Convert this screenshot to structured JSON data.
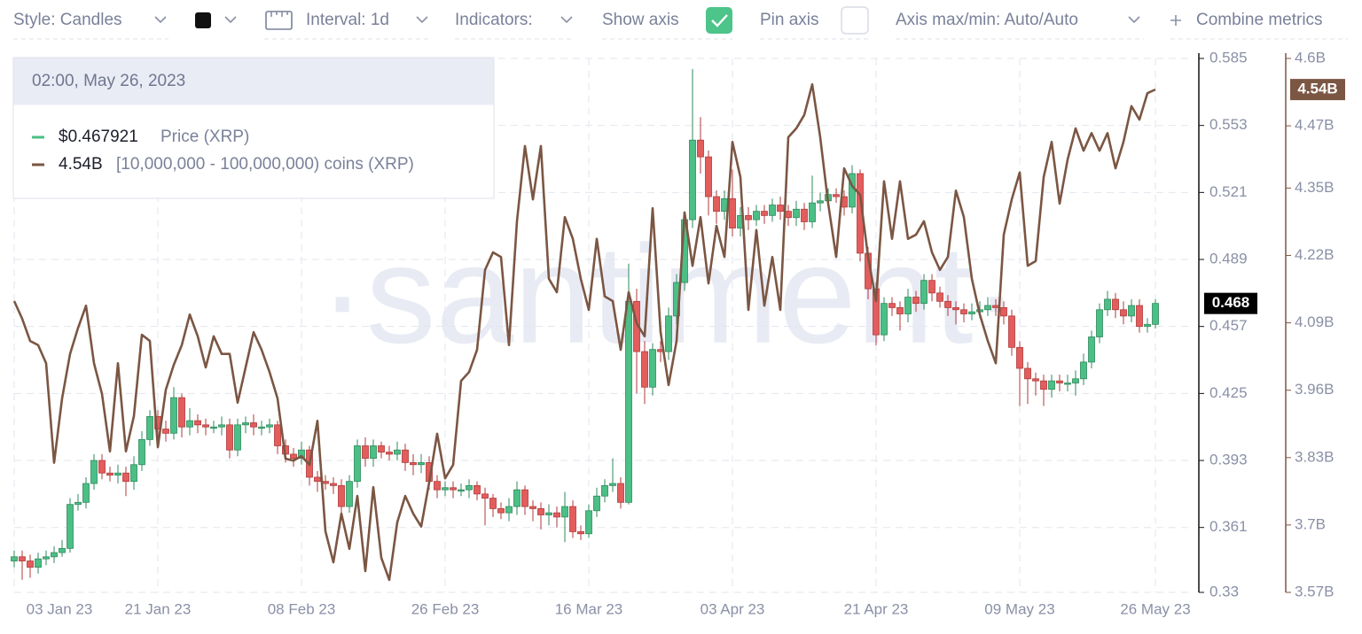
{
  "toolbar": {
    "style": "Style: Candles",
    "interval": "Interval: 1d",
    "indicators": "Indicators:",
    "show_axis": "Show axis",
    "pin_axis": "Pin axis",
    "axis_range": "Axis max/min: Auto/Auto",
    "combine": "Combine metrics"
  },
  "watermark": "·santiment·",
  "tooltip": {
    "date": "02:00, May 26, 2023",
    "price": "$0.467921",
    "holders": "4.54B"
  },
  "chart_data": {
    "type": "candlestick",
    "categories": [
      "03 Jan 23",
      null,
      null,
      null,
      null,
      null,
      null,
      null,
      null,
      null,
      null,
      null,
      null,
      null,
      null,
      null,
      null,
      null,
      "21 Jan 23",
      null,
      null,
      null,
      null,
      null,
      null,
      null,
      null,
      null,
      null,
      null,
      null,
      null,
      null,
      null,
      null,
      null,
      "08 Feb 23",
      null,
      null,
      null,
      null,
      null,
      null,
      null,
      null,
      null,
      null,
      null,
      null,
      null,
      null,
      null,
      null,
      null,
      "26 Feb 23",
      null,
      null,
      null,
      null,
      null,
      null,
      null,
      null,
      null,
      null,
      null,
      null,
      null,
      null,
      null,
      null,
      null,
      "16 Mar 23",
      null,
      null,
      null,
      null,
      null,
      null,
      null,
      null,
      null,
      null,
      null,
      null,
      null,
      null,
      null,
      null,
      null,
      "03 Apr 23",
      null,
      null,
      null,
      null,
      null,
      null,
      null,
      null,
      null,
      null,
      null,
      null,
      null,
      null,
      null,
      null,
      null,
      "21 Apr 23",
      null,
      null,
      null,
      null,
      null,
      null,
      null,
      null,
      null,
      null,
      null,
      null,
      null,
      null,
      null,
      null,
      null,
      "09 May 23",
      null,
      null,
      null,
      null,
      null,
      null,
      null,
      null,
      null,
      null,
      null,
      null,
      null,
      null,
      null,
      null,
      "26 May 23"
    ],
    "series": [
      {
        "name": "Price (XRP)",
        "type": "candlestick",
        "up_color": "#4cbf86",
        "down_color": "#e35d5d",
        "color": "#4cbf86",
        "open": [
          0.345,
          0.347,
          0.345,
          0.342,
          0.346,
          0.347,
          0.349,
          0.351,
          0.372,
          0.373,
          0.382,
          0.393,
          0.387,
          0.386,
          0.387,
          0.383,
          0.391,
          0.403,
          0.414,
          0.408,
          0.406,
          0.423,
          0.409,
          0.412,
          0.41,
          0.409,
          0.409,
          0.41,
          0.398,
          0.41,
          0.411,
          0.409,
          0.409,
          0.41,
          0.4,
          0.396,
          0.394,
          0.398,
          0.385,
          0.383,
          0.382,
          0.381,
          0.371,
          0.383,
          0.4,
          0.394,
          0.4,
          0.397,
          0.396,
          0.398,
          0.392,
          0.391,
          0.392,
          0.383,
          0.379,
          0.38,
          0.379,
          0.379,
          0.381,
          0.377,
          0.375,
          0.37,
          0.368,
          0.371,
          0.379,
          0.371,
          0.37,
          0.367,
          0.368,
          0.366,
          0.371,
          0.359,
          0.358,
          0.369,
          0.376,
          0.381,
          0.382,
          0.373,
          0.469,
          0.445,
          0.428,
          0.446,
          0.445,
          0.462,
          0.478,
          0.508,
          0.546,
          0.538,
          0.519,
          0.512,
          0.518,
          0.504,
          0.51,
          0.508,
          0.512,
          0.51,
          0.515,
          0.512,
          0.509,
          0.513,
          0.507,
          0.516,
          0.517,
          0.52,
          0.519,
          0.514,
          0.53,
          0.492,
          0.475,
          0.453,
          0.468,
          0.466,
          0.463,
          0.471,
          0.468,
          0.479,
          0.473,
          0.469,
          0.466,
          0.465,
          0.463,
          0.464,
          0.465,
          0.467,
          0.466,
          0.462,
          0.447,
          0.437,
          0.432,
          0.431,
          0.427,
          0.431,
          0.43,
          0.43,
          0.432,
          0.44,
          0.452,
          0.465,
          0.47,
          0.465,
          0.462,
          0.467,
          0.457,
          0.458
        ],
        "high": [
          0.35,
          0.35,
          0.348,
          0.349,
          0.35,
          0.352,
          0.355,
          0.375,
          0.377,
          0.385,
          0.396,
          0.396,
          0.39,
          0.391,
          0.39,
          0.395,
          0.407,
          0.417,
          0.417,
          0.412,
          0.428,
          0.425,
          0.418,
          0.415,
          0.413,
          0.412,
          0.414,
          0.413,
          0.413,
          0.414,
          0.415,
          0.412,
          0.413,
          0.412,
          0.403,
          0.399,
          0.402,
          0.4,
          0.388,
          0.386,
          0.385,
          0.384,
          0.386,
          0.403,
          0.404,
          0.403,
          0.402,
          0.4,
          0.402,
          0.401,
          0.396,
          0.396,
          0.395,
          0.386,
          0.383,
          0.383,
          0.382,
          0.384,
          0.383,
          0.38,
          0.377,
          0.373,
          0.375,
          0.383,
          0.381,
          0.374,
          0.373,
          0.372,
          0.371,
          0.378,
          0.374,
          0.362,
          0.372,
          0.38,
          0.384,
          0.394,
          0.385,
          0.487,
          0.475,
          0.45,
          0.449,
          0.45,
          0.466,
          0.482,
          0.511,
          0.58,
          0.557,
          0.541,
          0.522,
          0.522,
          0.532,
          0.514,
          0.514,
          0.515,
          0.515,
          0.518,
          0.519,
          0.515,
          0.517,
          0.516,
          0.529,
          0.521,
          0.523,
          0.523,
          0.522,
          0.534,
          0.532,
          0.495,
          0.478,
          0.471,
          0.471,
          0.469,
          0.475,
          0.474,
          0.482,
          0.482,
          0.476,
          0.472,
          0.469,
          0.468,
          0.468,
          0.469,
          0.471,
          0.47,
          0.469,
          0.465,
          0.45,
          0.44,
          0.435,
          0.434,
          0.434,
          0.434,
          0.434,
          0.436,
          0.444,
          0.455,
          0.468,
          0.474,
          0.473,
          0.469,
          0.47,
          0.47,
          0.461,
          0.47
        ],
        "low": [
          0.342,
          0.336,
          0.337,
          0.339,
          0.343,
          0.344,
          0.347,
          0.349,
          0.369,
          0.37,
          0.379,
          0.384,
          0.383,
          0.382,
          0.376,
          0.379,
          0.388,
          0.4,
          0.404,
          0.402,
          0.403,
          0.404,
          0.405,
          0.406,
          0.405,
          0.406,
          0.405,
          0.394,
          0.395,
          0.406,
          0.405,
          0.405,
          0.406,
          0.396,
          0.392,
          0.39,
          0.391,
          0.381,
          0.378,
          0.379,
          0.377,
          0.366,
          0.368,
          0.38,
          0.39,
          0.39,
          0.394,
          0.393,
          0.393,
          0.388,
          0.386,
          0.387,
          0.379,
          0.375,
          0.376,
          0.375,
          0.376,
          0.375,
          0.374,
          0.362,
          0.366,
          0.365,
          0.364,
          0.367,
          0.367,
          0.364,
          0.36,
          0.362,
          0.361,
          0.354,
          0.356,
          0.355,
          0.356,
          0.366,
          0.373,
          0.378,
          0.37,
          0.372,
          0.425,
          0.42,
          0.424,
          0.44,
          0.441,
          0.458,
          0.474,
          0.504,
          0.53,
          0.51,
          0.506,
          0.508,
          0.5,
          0.5,
          0.503,
          0.505,
          0.506,
          0.507,
          0.508,
          0.505,
          0.505,
          0.503,
          0.504,
          0.512,
          0.514,
          0.516,
          0.51,
          0.511,
          0.488,
          0.47,
          0.448,
          0.45,
          0.462,
          0.455,
          0.459,
          0.464,
          0.465,
          0.469,
          0.466,
          0.462,
          0.458,
          0.459,
          0.46,
          0.461,
          0.462,
          0.462,
          0.458,
          0.443,
          0.419,
          0.42,
          0.424,
          0.419,
          0.423,
          0.426,
          0.426,
          0.424,
          0.429,
          0.437,
          0.449,
          0.462,
          0.461,
          0.458,
          0.459,
          0.454,
          0.454,
          0.456
        ],
        "close": [
          0.347,
          0.345,
          0.342,
          0.346,
          0.347,
          0.349,
          0.351,
          0.372,
          0.373,
          0.382,
          0.393,
          0.387,
          0.386,
          0.387,
          0.383,
          0.391,
          0.403,
          0.414,
          0.408,
          0.406,
          0.423,
          0.409,
          0.412,
          0.41,
          0.409,
          0.409,
          0.41,
          0.398,
          0.41,
          0.411,
          0.409,
          0.409,
          0.41,
          0.4,
          0.396,
          0.394,
          0.398,
          0.385,
          0.383,
          0.382,
          0.381,
          0.371,
          0.383,
          0.4,
          0.394,
          0.4,
          0.397,
          0.396,
          0.398,
          0.392,
          0.391,
          0.392,
          0.383,
          0.379,
          0.38,
          0.379,
          0.379,
          0.381,
          0.377,
          0.375,
          0.37,
          0.368,
          0.371,
          0.379,
          0.371,
          0.37,
          0.367,
          0.368,
          0.366,
          0.371,
          0.359,
          0.358,
          0.369,
          0.376,
          0.381,
          0.382,
          0.373,
          0.469,
          0.445,
          0.428,
          0.446,
          0.445,
          0.462,
          0.478,
          0.508,
          0.546,
          0.538,
          0.519,
          0.512,
          0.518,
          0.504,
          0.51,
          0.508,
          0.512,
          0.51,
          0.515,
          0.512,
          0.509,
          0.513,
          0.507,
          0.516,
          0.517,
          0.52,
          0.519,
          0.514,
          0.53,
          0.492,
          0.475,
          0.453,
          0.468,
          0.466,
          0.463,
          0.471,
          0.468,
          0.479,
          0.473,
          0.469,
          0.466,
          0.465,
          0.463,
          0.464,
          0.465,
          0.467,
          0.466,
          0.462,
          0.447,
          0.437,
          0.432,
          0.431,
          0.427,
          0.431,
          0.43,
          0.43,
          0.432,
          0.44,
          0.452,
          0.465,
          0.47,
          0.465,
          0.462,
          0.467,
          0.457,
          0.458,
          0.468
        ]
      },
      {
        "name": "[10,000,000 - 100,000,000) coins (XRP)",
        "type": "line",
        "axis": "y2",
        "color": "#7b5643",
        "values": [
          4.132,
          4.098,
          4.055,
          4.047,
          4.012,
          3.82,
          3.944,
          4.03,
          4.08,
          4.123,
          4.012,
          3.953,
          3.842,
          4.012,
          3.842,
          3.91,
          4.067,
          4.055,
          3.85,
          3.961,
          4.009,
          4.047,
          4.106,
          4.064,
          4.004,
          4.064,
          4.03,
          4.03,
          3.936,
          4.004,
          4.072,
          4.038,
          3.995,
          3.944,
          3.828,
          3.824,
          3.833,
          3.816,
          3.901,
          3.688,
          3.628,
          3.722,
          3.654,
          3.756,
          3.611,
          3.773,
          3.637,
          3.594,
          3.705,
          3.756,
          3.722,
          3.697,
          3.782,
          3.876,
          3.79,
          3.816,
          3.978,
          3.995,
          4.038,
          4.192,
          4.226,
          4.217,
          4.047,
          4.286,
          4.431,
          4.328,
          4.431,
          4.175,
          4.149,
          4.294,
          4.252,
          4.175,
          4.115,
          4.252,
          4.141,
          4.132,
          4.038,
          4.149,
          4.089,
          4.064,
          4.311,
          4.072,
          3.97,
          4.055,
          4.303,
          4.2,
          4.294,
          4.166,
          4.277,
          4.217,
          4.439,
          4.371,
          4.115,
          4.269,
          4.123,
          4.217,
          4.115,
          4.448,
          4.465,
          4.491,
          4.55,
          4.448,
          4.32,
          4.217,
          4.388,
          4.354,
          4.337,
          4.217,
          4.132,
          4.363,
          4.252,
          4.363,
          4.252,
          4.26,
          4.286,
          4.226,
          4.192,
          4.217,
          4.345,
          4.294,
          4.175,
          4.106,
          4.055,
          4.012,
          4.26,
          4.328,
          4.38,
          4.2,
          4.209,
          4.371,
          4.439,
          4.32,
          4.405,
          4.465,
          4.422,
          4.456,
          4.422,
          4.456,
          4.388,
          4.439,
          4.508,
          4.482,
          4.533,
          4.54
        ]
      }
    ],
    "ylim": [
      0.33,
      0.585
    ],
    "yticks": [
      0.33,
      0.361,
      0.393,
      0.425,
      0.457,
      0.489,
      0.521,
      0.553,
      0.585
    ],
    "y2lim": [
      3.57,
      4.6
    ],
    "y2ticks": [
      {
        "value": 3.57,
        "label": "3.57B"
      },
      {
        "value": 3.7,
        "label": "3.7B"
      },
      {
        "value": 3.83,
        "label": "3.83B"
      },
      {
        "value": 3.96,
        "label": "3.96B"
      },
      {
        "value": 4.09,
        "label": "4.09B"
      },
      {
        "value": 4.22,
        "label": "4.22B"
      },
      {
        "value": 4.35,
        "label": "4.35B"
      },
      {
        "value": 4.47,
        "label": "4.47B"
      },
      {
        "value": 4.6,
        "label": "4.6B"
      }
    ],
    "last_price": 0.468,
    "last_holders": {
      "value": 4.54,
      "label": "4.54B"
    },
    "grid": true
  }
}
